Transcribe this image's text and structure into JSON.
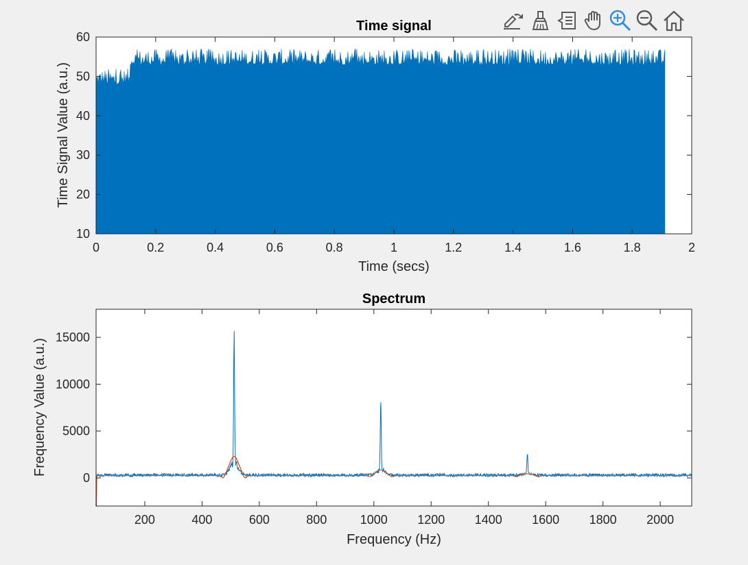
{
  "toolbar": {
    "icons": [
      "export-icon",
      "brush-icon",
      "datatip-icon",
      "pan-icon",
      "zoom-in-icon",
      "zoom-out-icon",
      "home-icon"
    ],
    "active_color": "#2f8be6",
    "icon_color": "#5a5a5a"
  },
  "colors": {
    "background": "#f0f0f0",
    "axes_face": "#ffffff",
    "series_blue": "#0072bd",
    "series_orange": "#d95319"
  },
  "chart_data": [
    {
      "type": "line",
      "title": "Time signal",
      "xlabel": "Time (secs)",
      "ylabel": "Time Signal Value (a.u.)",
      "xlim": [
        0,
        2
      ],
      "ylim": [
        10,
        60
      ],
      "xticks": [
        0,
        0.2,
        0.4,
        0.6,
        0.8,
        1,
        1.2,
        1.4,
        1.6,
        1.8,
        2
      ],
      "xtick_labels": [
        "0",
        "0.2",
        "0.4",
        "0.6",
        "0.8",
        "1",
        "1.2",
        "1.4",
        "1.6",
        "1.8",
        "2"
      ],
      "yticks": [
        10,
        20,
        30,
        40,
        50,
        60
      ],
      "ytick_labels": [
        "10",
        "20",
        "30",
        "40",
        "50",
        "60"
      ],
      "grid": false,
      "series": [
        {
          "color": "#0072bd",
          "envelope": [
            {
              "x_start": 0,
              "x_end": 0.115,
              "low": 10,
              "high": 48,
              "peak_high": 52
            },
            {
              "x_start": 0.115,
              "x_end": 1.91,
              "low": 10,
              "high": 53,
              "peak_high": 57
            }
          ]
        }
      ]
    },
    {
      "type": "line",
      "title": "Spectrum",
      "xlabel": "Frequency (Hz)",
      "ylabel": "Frequency Value (a.u.)",
      "xlim": [
        30,
        2110
      ],
      "ylim": [
        -3000,
        18000
      ],
      "xticks": [
        200,
        400,
        600,
        800,
        1000,
        1200,
        1400,
        1600,
        1800,
        2000
      ],
      "xtick_labels": [
        "200",
        "400",
        "600",
        "800",
        "1000",
        "1200",
        "1400",
        "1600",
        "1800",
        "2000"
      ],
      "yticks": [
        0,
        5000,
        10000,
        15000
      ],
      "ytick_labels": [
        "0",
        "5000",
        "10000",
        "15000"
      ],
      "grid": false,
      "series": [
        {
          "color": "#0072bd",
          "baseline": 300,
          "peaks": [
            {
              "x": 512,
              "y": 14400
            },
            {
              "x": 1024,
              "y": 7300
            },
            {
              "x": 1536,
              "y": 2100
            }
          ]
        },
        {
          "color": "#d95319",
          "baseline": 250,
          "bumps": [
            {
              "x": 512,
              "y": 2300
            },
            {
              "x": 1024,
              "y": 850
            },
            {
              "x": 1536,
              "y": 450
            }
          ]
        }
      ]
    }
  ]
}
